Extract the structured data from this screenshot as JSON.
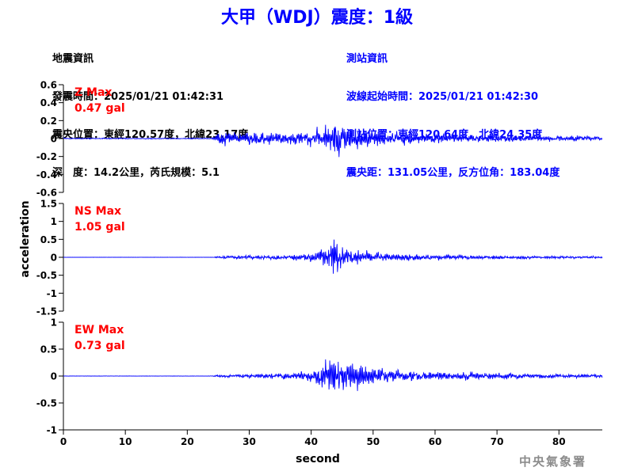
{
  "title": "大甲（WDJ）震度：1級",
  "quake_info": {
    "heading": "地震資訊",
    "time": "發震時間：2025/01/21 01:42:31",
    "location": "震央位置：東經120.57度，北緯23.17度",
    "depth_magnitude": "深　度：14.2公里，芮氏規模：5.1"
  },
  "station_info": {
    "heading": "測站資訊",
    "wave_start": "波線起始時間：2025/01/21 01:42:30",
    "location": "測站位置：東經120.64度，北緯24.35度",
    "distance": "震央距：131.05公里，反方位角：183.04度"
  },
  "ylabel": "acceleration",
  "xlabel": "second",
  "agency": "中央氣象署",
  "colors": {
    "title": "#0000ff",
    "trace": "#0000ff",
    "max_label": "#ff0000",
    "station_info": "#0000ff"
  },
  "chart_data": [
    {
      "type": "line",
      "component": "Z",
      "max_label": "Z Max",
      "max_value": "0.47 gal",
      "ylim": [
        -0.6,
        0.6
      ],
      "yticks": [
        -0.6,
        -0.4,
        -0.2,
        0,
        0.2,
        0.4,
        0.6
      ],
      "ytick_labels": [
        "-0.6",
        "-0.4",
        "-0.2",
        "0",
        "0.2",
        "0.4",
        "0.6"
      ],
      "envelope": {
        "x": [
          0,
          24,
          25,
          30,
          35,
          40,
          42,
          43.5,
          44,
          45,
          48,
          50,
          55,
          60,
          65,
          70,
          80,
          87
        ],
        "amp": [
          0.01,
          0.01,
          0.13,
          0.12,
          0.11,
          0.14,
          0.2,
          0.3,
          0.36,
          0.26,
          0.16,
          0.14,
          0.11,
          0.09,
          0.07,
          0.06,
          0.05,
          0.05
        ]
      },
      "seed": 7
    },
    {
      "type": "line",
      "component": "NS",
      "max_label": "NS Max",
      "max_value": "1.05 gal",
      "ylim": [
        -1.5,
        1.5
      ],
      "yticks": [
        -1.5,
        -1,
        -0.5,
        0,
        0.5,
        1,
        1.5
      ],
      "ytick_labels": [
        "-1.5",
        "-1",
        "-0.5",
        "0",
        "0.5",
        "1",
        "1.5"
      ],
      "envelope": {
        "x": [
          0,
          24,
          25,
          30,
          35,
          40,
          42,
          43,
          44,
          45,
          47,
          50,
          55,
          60,
          70,
          80,
          87
        ],
        "amp": [
          0.005,
          0.005,
          0.05,
          0.08,
          0.1,
          0.18,
          0.45,
          0.75,
          0.8,
          0.6,
          0.35,
          0.22,
          0.16,
          0.12,
          0.09,
          0.06,
          0.05
        ]
      },
      "seed": 19
    },
    {
      "type": "line",
      "component": "EW",
      "max_label": "EW Max",
      "max_value": "0.73 gal",
      "ylim": [
        -1,
        1
      ],
      "yticks": [
        -1,
        -0.5,
        0,
        0.5,
        1
      ],
      "ytick_labels": [
        "-1",
        "-0.5",
        "0",
        "0.5",
        "1"
      ],
      "envelope": {
        "x": [
          0,
          24,
          25,
          30,
          35,
          40,
          42,
          43,
          44,
          45,
          47,
          50,
          55,
          60,
          65,
          70,
          80,
          87
        ],
        "amp": [
          0.005,
          0.005,
          0.04,
          0.07,
          0.08,
          0.15,
          0.4,
          0.58,
          0.6,
          0.5,
          0.42,
          0.3,
          0.18,
          0.14,
          0.12,
          0.1,
          0.06,
          0.05
        ]
      },
      "seed": 31
    }
  ],
  "xaxis": {
    "xlim": [
      0,
      87
    ],
    "xticks": [
      0,
      10,
      20,
      30,
      40,
      50,
      60,
      70,
      80
    ],
    "xtick_labels": [
      "0",
      "10",
      "20",
      "30",
      "40",
      "50",
      "60",
      "70",
      "80"
    ]
  }
}
